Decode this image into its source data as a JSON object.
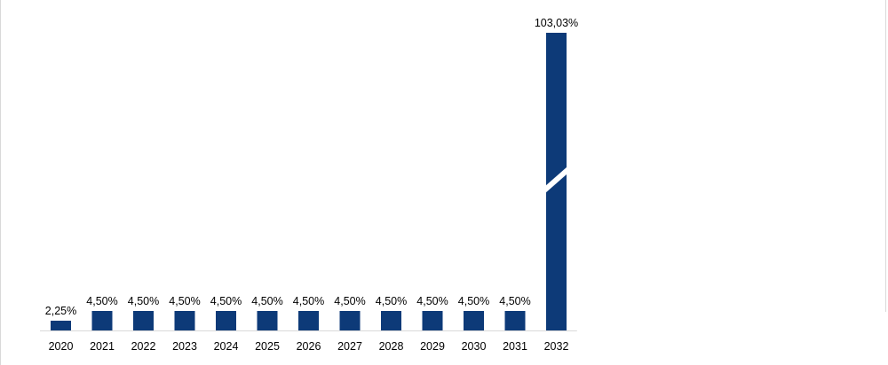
{
  "chart_data": {
    "type": "bar",
    "title": "",
    "xlabel": "",
    "ylabel": "",
    "categories": [
      "2020",
      "2021",
      "2022",
      "2023",
      "2024",
      "2025",
      "2026",
      "2027",
      "2028",
      "2029",
      "2030",
      "2031",
      "2032"
    ],
    "values": [
      2.25,
      4.5,
      4.5,
      4.5,
      4.5,
      4.5,
      4.5,
      4.5,
      4.5,
      4.5,
      4.5,
      4.5,
      103.03
    ],
    "data_labels": [
      "2,25%",
      "4,50%",
      "4,50%",
      "4,50%",
      "4,50%",
      "4,50%",
      "4,50%",
      "4,50%",
      "4,50%",
      "4,50%",
      "4,50%",
      "4,50%",
      "103,03%"
    ],
    "value_unit": "%",
    "axis_break_on_last_bar": true,
    "grid": false,
    "legend": "none",
    "colors": {
      "bar": "#0d3a78",
      "axis": "#d9d9d9",
      "text": "#000000"
    }
  }
}
